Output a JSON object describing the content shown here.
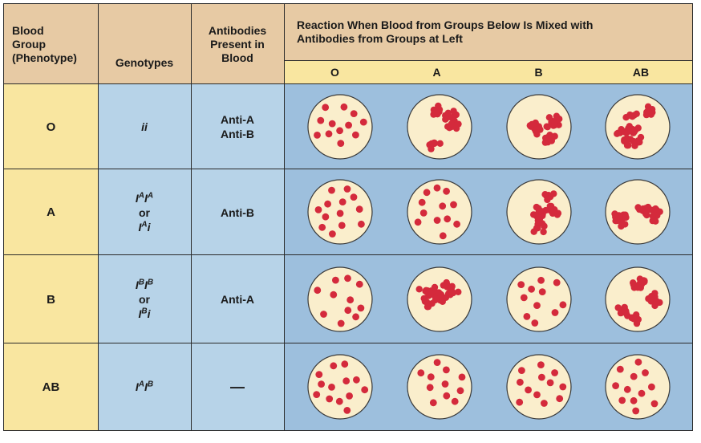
{
  "header": {
    "col_group": [
      "Blood",
      "Group",
      "(Phenotype)"
    ],
    "col_genotypes": "Genotypes",
    "col_antibodies": [
      "Antibodies",
      "Present in",
      "Blood"
    ],
    "col_reaction": [
      "Reaction When Blood from Groups Below Is Mixed with",
      "Antibodies from Groups at Left"
    ],
    "sub_groups": [
      "O",
      "A",
      "B",
      "AB"
    ]
  },
  "rows": [
    {
      "group": "O",
      "genotype_html": "<i>ii</i>",
      "antibodies": [
        "Anti-A",
        "Anti-B"
      ],
      "clumped": [
        false,
        true,
        true,
        true
      ]
    },
    {
      "group": "A",
      "genotype_html": "<i>I</i><sup>A</sup><i>I</i><sup>A</sup><br>or<br><i>I</i><sup>A</sup><i>i</i>",
      "antibodies": [
        "Anti-B"
      ],
      "clumped": [
        false,
        false,
        true,
        true
      ]
    },
    {
      "group": "B",
      "genotype_html": "<i>I</i><sup>B</sup><i>I</i><sup>B</sup><br>or<br><i>I</i><sup>B</sup><i>i</i>",
      "antibodies": [
        "Anti-A"
      ],
      "clumped": [
        false,
        true,
        false,
        true
      ]
    },
    {
      "group": "AB",
      "genotype_html": "<i>I</i><sup>A</sup><i>I</i><sup>B</sup>",
      "antibodies": [
        "—"
      ],
      "clumped": [
        false,
        false,
        false,
        false
      ]
    }
  ],
  "colors": {
    "header_bg": "#e7caa4",
    "group_bg": "#f9e6a0",
    "genotype_bg": "#b7d3e8",
    "reaction_bg": "#9dbfdd",
    "dish_fill": "#faeecc",
    "cell_red": "#d42a3c"
  }
}
